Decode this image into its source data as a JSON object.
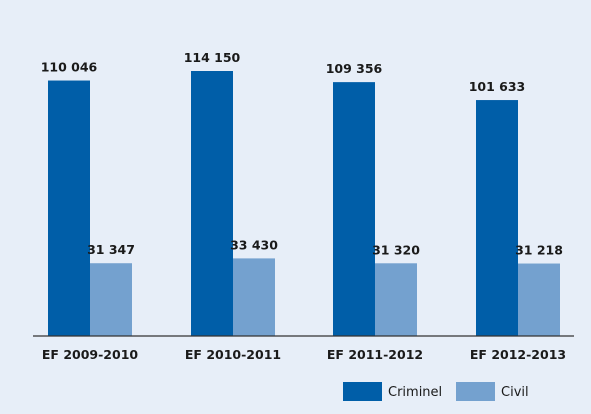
{
  "chart_data": {
    "type": "bar",
    "categories": [
      "EF 2009-2010",
      "EF 2010-2011",
      "EF 2011-2012",
      "EF 2012-2013"
    ],
    "series": [
      {
        "name": "Criminel",
        "values": [
          110046,
          114150,
          109356,
          101633
        ],
        "labels": [
          "110 046",
          "114 150",
          "109 356",
          "101 633"
        ],
        "color": "#005ea8"
      },
      {
        "name": "Civil",
        "values": [
          31347,
          33430,
          31320,
          31218
        ],
        "labels": [
          "31 347",
          "33 430",
          "31 320",
          "31 218"
        ],
        "color": "#74a1cf"
      }
    ],
    "ylim": [
      0,
      120000
    ],
    "grid": false,
    "legend": "bottom-right",
    "colors": {
      "background": "#e7eef8",
      "axis": "#333333"
    }
  }
}
